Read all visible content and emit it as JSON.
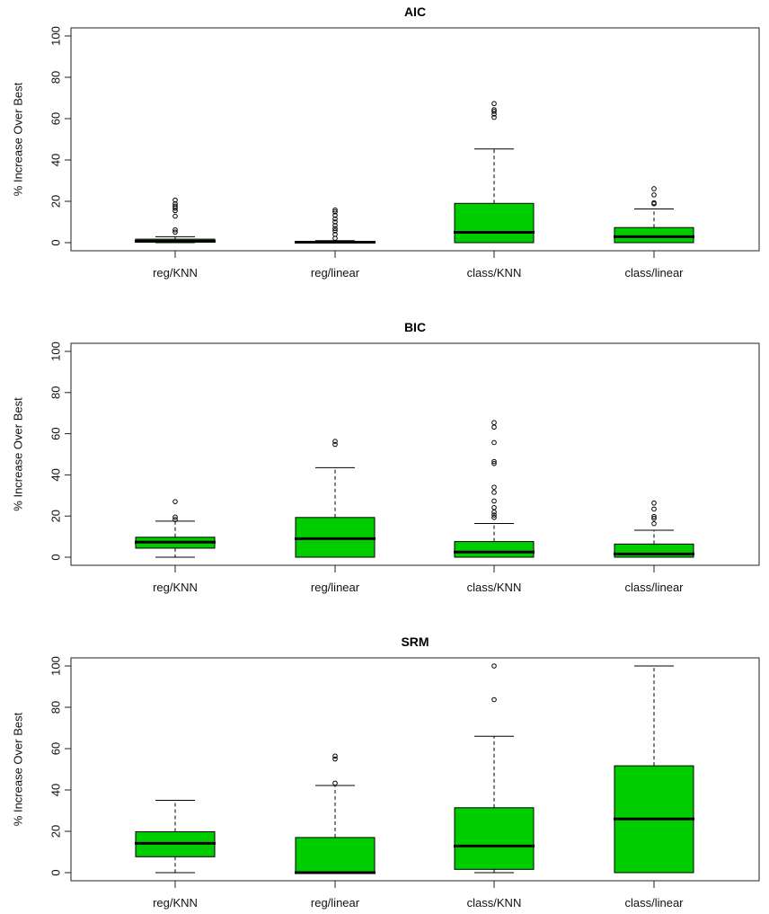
{
  "chart_data": [
    {
      "type": "box",
      "title": "AIC",
      "xlabel": "",
      "ylabel": "% Increase Over Best",
      "ylim": [
        0,
        100
      ],
      "yticks": [
        0,
        20,
        40,
        60,
        80,
        100
      ],
      "categories": [
        "reg/KNN",
        "reg/linear",
        "class/KNN",
        "class/linear"
      ],
      "fill_color": "#00CD00",
      "boxes": [
        {
          "label": "reg/KNN",
          "whisker_low": 0,
          "q1": 0.2,
          "median": 0.7,
          "q3": 1.7,
          "whisker_high": 2.9,
          "outliers": [
            5.1,
            6.2,
            12.8,
            15.5,
            16.7,
            17.7,
            18.8,
            20.6
          ]
        },
        {
          "label": "reg/linear",
          "whisker_low": 0,
          "q1": 0,
          "median": 0.2,
          "q3": 0.5,
          "whisker_high": 1.0,
          "outliers": [
            2.1,
            4.0,
            5.7,
            6.8,
            8.3,
            10.0,
            11.5,
            13.2,
            14.9,
            15.8
          ]
        },
        {
          "label": "class/KNN",
          "whisker_low": 0,
          "q1": 0,
          "median": 5.0,
          "q3": 19.0,
          "whisker_high": 45.3,
          "outliers": [
            60.6,
            62.2,
            63.5,
            64.3,
            67.3
          ]
        },
        {
          "label": "class/linear",
          "whisker_low": 0,
          "q1": 0,
          "median": 2.9,
          "q3": 7.3,
          "whisker_high": 16.3,
          "outliers": [
            18.8,
            19.3,
            23.1,
            26.1
          ]
        }
      ]
    },
    {
      "type": "box",
      "title": "BIC",
      "xlabel": "",
      "ylabel": "% Increase Over Best",
      "ylim": [
        0,
        100
      ],
      "yticks": [
        0,
        20,
        40,
        60,
        80,
        100
      ],
      "categories": [
        "reg/KNN",
        "reg/linear",
        "class/KNN",
        "class/linear"
      ],
      "fill_color": "#00CD00",
      "boxes": [
        {
          "label": "reg/KNN",
          "whisker_low": 0,
          "q1": 4.4,
          "median": 7.3,
          "q3": 9.7,
          "whisker_high": 17.5,
          "outliers": [
            18.3,
            19.5,
            27.0
          ]
        },
        {
          "label": "reg/linear",
          "whisker_low": 0,
          "q1": 0,
          "median": 9.0,
          "q3": 19.3,
          "whisker_high": 43.5,
          "outliers": [
            54.8,
            56.3
          ]
        },
        {
          "label": "class/KNN",
          "whisker_low": 0,
          "q1": 0,
          "median": 2.5,
          "q3": 7.6,
          "whisker_high": 16.4,
          "outliers": [
            19.3,
            20.5,
            21.9,
            24.1,
            27.3,
            31.5,
            34.0,
            45.5,
            46.5,
            55.7,
            63.2,
            65.4
          ]
        },
        {
          "label": "class/linear",
          "whisker_low": 0,
          "q1": 0,
          "median": 1.6,
          "q3": 6.4,
          "whisker_high": 13.1,
          "outliers": [
            16.3,
            18.9,
            19.8,
            23.4,
            26.3
          ]
        }
      ]
    },
    {
      "type": "box",
      "title": "SRM",
      "xlabel": "",
      "ylabel": "% Increase Over Best",
      "ylim": [
        0,
        100
      ],
      "yticks": [
        0,
        20,
        40,
        60,
        80,
        100
      ],
      "categories": [
        "reg/KNN",
        "reg/linear",
        "class/KNN",
        "class/linear"
      ],
      "fill_color": "#00CD00",
      "boxes": [
        {
          "label": "reg/KNN",
          "whisker_low": 0,
          "q1": 7.7,
          "median": 14.2,
          "q3": 19.8,
          "whisker_high": 35.0,
          "outliers": []
        },
        {
          "label": "reg/linear",
          "whisker_low": 0,
          "q1": 0,
          "median": 0,
          "q3": 17.0,
          "whisker_high": 42.2,
          "outliers": [
            43.3,
            55.0,
            56.4
          ]
        },
        {
          "label": "class/KNN",
          "whisker_low": 0,
          "q1": 1.6,
          "median": 12.9,
          "q3": 31.4,
          "whisker_high": 66.0,
          "outliers": [
            83.7,
            100.0
          ]
        },
        {
          "label": "class/linear",
          "whisker_low": 0,
          "q1": 0,
          "median": 26.0,
          "q3": 51.7,
          "whisker_high": 100.0,
          "outliers": []
        }
      ]
    }
  ]
}
